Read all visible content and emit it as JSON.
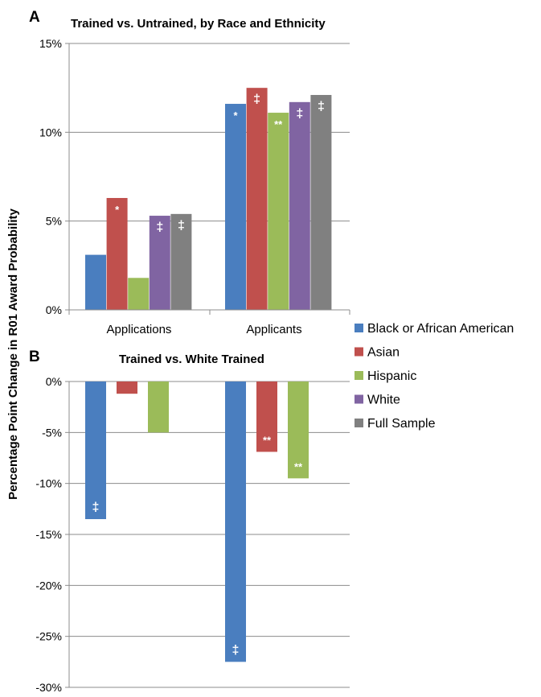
{
  "y_axis_title": "Percentage Point Change in R01 Award Probability",
  "legend": [
    {
      "label": "Black or African American",
      "color": "#4a7ebf"
    },
    {
      "label": "Asian",
      "color": "#c0504d"
    },
    {
      "label": "Hispanic",
      "color": "#9bbb59"
    },
    {
      "label": "White",
      "color": "#8064a2"
    },
    {
      "label": "Full Sample",
      "color": "#808080"
    }
  ],
  "chart_data": [
    {
      "type": "bar",
      "panel_letter": "A",
      "title": "Trained vs. Untrained, by Race and Ethnicity",
      "categories": [
        "Applications",
        "Applicants"
      ],
      "ylim": [
        0,
        15
      ],
      "yticks": [
        "0%",
        "5%",
        "10%",
        "15%"
      ],
      "grid": true,
      "legend_position": "right",
      "series": [
        {
          "name": "Black or African American",
          "color": "#4a7ebf",
          "values": [
            3.1,
            11.6
          ],
          "markers": [
            "",
            "*"
          ]
        },
        {
          "name": "Asian",
          "color": "#c0504d",
          "values": [
            6.3,
            12.5
          ],
          "markers": [
            "*",
            "‡"
          ]
        },
        {
          "name": "Hispanic",
          "color": "#9bbb59",
          "values": [
            1.8,
            11.1
          ],
          "markers": [
            "",
            "**"
          ]
        },
        {
          "name": "White",
          "color": "#8064a2",
          "values": [
            5.3,
            11.7
          ],
          "markers": [
            "‡",
            "‡"
          ]
        },
        {
          "name": "Full Sample",
          "color": "#808080",
          "values": [
            5.4,
            12.1
          ],
          "markers": [
            "‡",
            "‡"
          ]
        }
      ]
    },
    {
      "type": "bar",
      "panel_letter": "B",
      "title": "Trained vs. White Trained",
      "categories": [
        "Applications",
        "Applicants"
      ],
      "ylim": [
        -30,
        0
      ],
      "yticks": [
        "0%",
        "-5%",
        "-10%",
        "-15%",
        "-20%",
        "-25%",
        "-30%"
      ],
      "grid": true,
      "series": [
        {
          "name": "Black or African American",
          "color": "#4a7ebf",
          "values": [
            -13.5,
            -27.5
          ],
          "markers": [
            "‡",
            "‡"
          ]
        },
        {
          "name": "Asian",
          "color": "#c0504d",
          "values": [
            -1.2,
            -6.9
          ],
          "markers": [
            "",
            "**"
          ]
        },
        {
          "name": "Hispanic",
          "color": "#9bbb59",
          "values": [
            -5.0,
            -9.5
          ],
          "markers": [
            "",
            "**"
          ]
        }
      ]
    }
  ]
}
